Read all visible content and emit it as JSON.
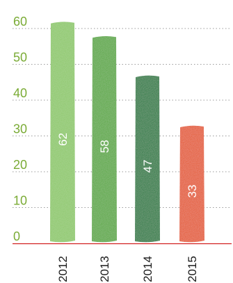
{
  "chart_data": {
    "type": "bar",
    "categories": [
      "2012",
      "2013",
      "2014",
      "2015"
    ],
    "values": [
      62,
      58,
      47,
      33
    ],
    "data_labels": [
      "62",
      "58",
      "47",
      "33"
    ],
    "title": "",
    "xlabel": "",
    "ylabel": "",
    "ylim": [
      0,
      62
    ],
    "yticks": [
      0,
      10,
      20,
      30,
      40,
      50,
      60
    ],
    "ytick_labels": [
      "0",
      "10",
      "20",
      "30",
      "40",
      "50",
      "60"
    ],
    "grid": "dotted horizontal",
    "colors": {
      "bars": [
        "#8cc868",
        "#58a83c",
        "#1d7a3c",
        "#e4582c"
      ],
      "tick_labels": "#7aab35",
      "baseline": "#d22020",
      "grid": "#9a9a9a"
    }
  }
}
